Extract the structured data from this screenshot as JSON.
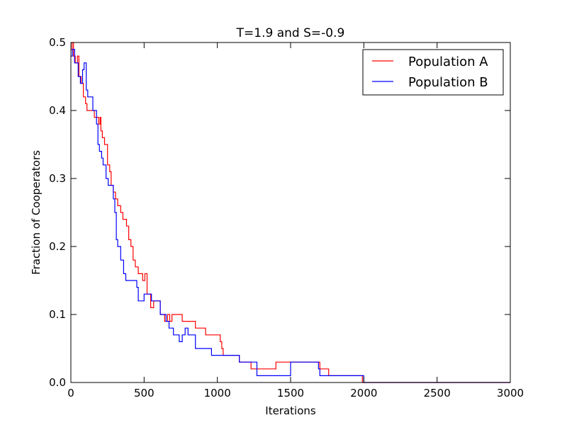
{
  "chart_data": {
    "type": "line",
    "title": "T=1.9 and S=-0.9",
    "xlabel": "Iterations",
    "ylabel": "Fraction of Cooperators",
    "xlim": [
      0,
      3000
    ],
    "ylim": [
      0,
      0.5
    ],
    "xticks": [
      0,
      500,
      1000,
      1500,
      2000,
      2500,
      3000
    ],
    "yticks": [
      0.0,
      0.1,
      0.2,
      0.3,
      0.4,
      0.5
    ],
    "xtick_labels": [
      "0",
      "500",
      "1000",
      "1500",
      "2000",
      "2500",
      "3000"
    ],
    "ytick_labels": [
      "0.0",
      "0.1",
      "0.2",
      "0.3",
      "0.4",
      "0.5"
    ],
    "grid": false,
    "legend_position": "top-right",
    "series": [
      {
        "name": "Population A",
        "color": "#ff0000",
        "step": true,
        "points": [
          [
            0,
            0.49
          ],
          [
            8,
            0.5
          ],
          [
            18,
            0.48
          ],
          [
            30,
            0.47
          ],
          [
            45,
            0.48
          ],
          [
            55,
            0.45
          ],
          [
            70,
            0.44
          ],
          [
            85,
            0.42
          ],
          [
            100,
            0.41
          ],
          [
            110,
            0.4
          ],
          [
            160,
            0.39
          ],
          [
            190,
            0.38
          ],
          [
            200,
            0.39
          ],
          [
            205,
            0.37
          ],
          [
            215,
            0.36
          ],
          [
            230,
            0.35
          ],
          [
            250,
            0.32
          ],
          [
            265,
            0.31
          ],
          [
            275,
            0.29
          ],
          [
            290,
            0.28
          ],
          [
            305,
            0.27
          ],
          [
            320,
            0.26
          ],
          [
            340,
            0.25
          ],
          [
            355,
            0.24
          ],
          [
            380,
            0.23
          ],
          [
            395,
            0.21
          ],
          [
            410,
            0.2
          ],
          [
            425,
            0.18
          ],
          [
            440,
            0.17
          ],
          [
            460,
            0.16
          ],
          [
            490,
            0.15
          ],
          [
            505,
            0.16
          ],
          [
            520,
            0.13
          ],
          [
            545,
            0.11
          ],
          [
            565,
            0.12
          ],
          [
            610,
            0.1
          ],
          [
            640,
            0.09
          ],
          [
            660,
            0.1
          ],
          [
            675,
            0.09
          ],
          [
            690,
            0.1
          ],
          [
            760,
            0.09
          ],
          [
            850,
            0.08
          ],
          [
            920,
            0.07
          ],
          [
            1020,
            0.06
          ],
          [
            1030,
            0.05
          ],
          [
            1040,
            0.04
          ],
          [
            1150,
            0.03
          ],
          [
            1230,
            0.02
          ],
          [
            1400,
            0.03
          ],
          [
            1700,
            0.02
          ],
          [
            1760,
            0.01
          ],
          [
            1990,
            0.0
          ],
          [
            3000,
            0.0
          ]
        ]
      },
      {
        "name": "Population B",
        "color": "#0000ff",
        "step": true,
        "points": [
          [
            0,
            0.48
          ],
          [
            10,
            0.49
          ],
          [
            25,
            0.47
          ],
          [
            50,
            0.45
          ],
          [
            65,
            0.44
          ],
          [
            80,
            0.46
          ],
          [
            90,
            0.47
          ],
          [
            105,
            0.43
          ],
          [
            115,
            0.42
          ],
          [
            150,
            0.4
          ],
          [
            175,
            0.38
          ],
          [
            185,
            0.35
          ],
          [
            195,
            0.34
          ],
          [
            210,
            0.33
          ],
          [
            220,
            0.32
          ],
          [
            240,
            0.3
          ],
          [
            255,
            0.29
          ],
          [
            290,
            0.27
          ],
          [
            300,
            0.25
          ],
          [
            310,
            0.21
          ],
          [
            320,
            0.2
          ],
          [
            340,
            0.18
          ],
          [
            360,
            0.16
          ],
          [
            375,
            0.15
          ],
          [
            450,
            0.14
          ],
          [
            460,
            0.12
          ],
          [
            500,
            0.13
          ],
          [
            550,
            0.12
          ],
          [
            610,
            0.1
          ],
          [
            650,
            0.09
          ],
          [
            670,
            0.08
          ],
          [
            700,
            0.07
          ],
          [
            740,
            0.06
          ],
          [
            760,
            0.07
          ],
          [
            780,
            0.08
          ],
          [
            800,
            0.07
          ],
          [
            850,
            0.05
          ],
          [
            960,
            0.04
          ],
          [
            1150,
            0.03
          ],
          [
            1270,
            0.01
          ],
          [
            1500,
            0.03
          ],
          [
            1690,
            0.02
          ],
          [
            1700,
            0.01
          ],
          [
            2000,
            0.0
          ],
          [
            3000,
            0.0
          ]
        ]
      }
    ]
  }
}
